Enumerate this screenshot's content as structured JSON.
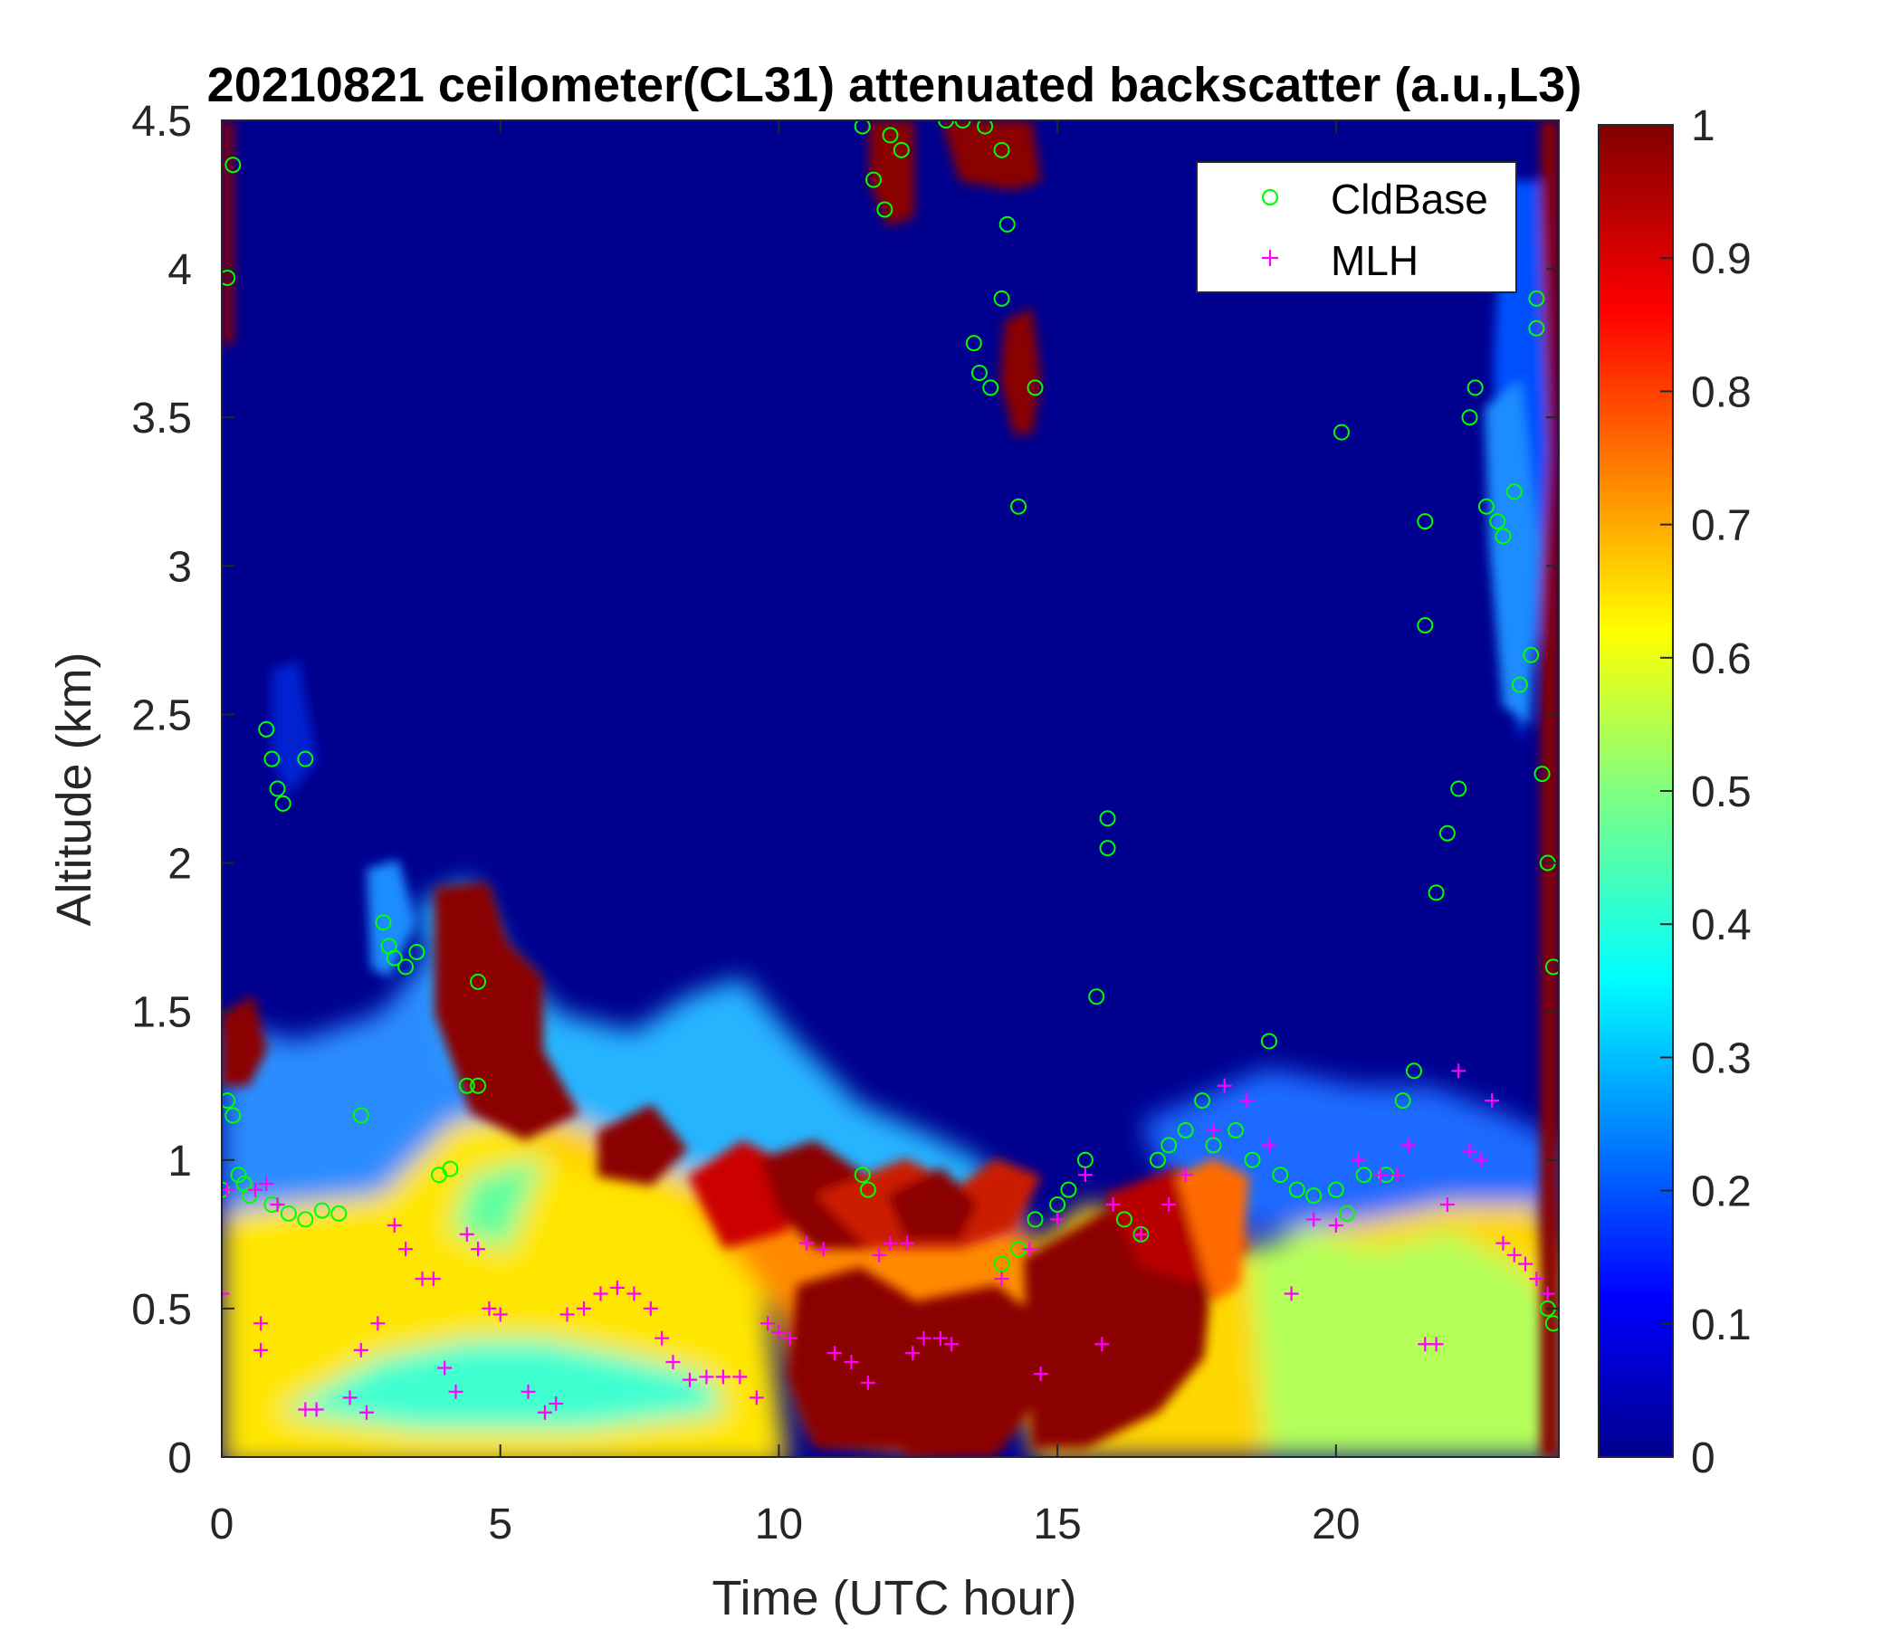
{
  "chart_data": {
    "type": "heatmap",
    "title": "20210821 ceilometer(CL31) attenuated backscatter (a.u.,L3)",
    "xlabel": "Time (UTC hour)",
    "ylabel": "Altitude (km)",
    "xlim": [
      0,
      24
    ],
    "ylim": [
      0,
      4.5
    ],
    "xticks": [
      "0",
      "5",
      "10",
      "15",
      "20"
    ],
    "xtick_values": [
      0,
      5,
      10,
      15,
      20
    ],
    "yticks": [
      "0",
      "0.5",
      "1",
      "1.5",
      "2",
      "2.5",
      "3",
      "3.5",
      "4",
      "4.5"
    ],
    "ytick_values": [
      0,
      0.5,
      1,
      1.5,
      2,
      2.5,
      3,
      3.5,
      4,
      4.5
    ],
    "colorbar": {
      "colormap": "jet",
      "range": [
        0,
        1
      ],
      "ticks": [
        "0",
        "0.1",
        "0.2",
        "0.3",
        "0.4",
        "0.5",
        "0.6",
        "0.7",
        "0.8",
        "0.9",
        "1"
      ],
      "tick_values": [
        0,
        0.1,
        0.2,
        0.3,
        0.4,
        0.5,
        0.6,
        0.7,
        0.8,
        0.9,
        1
      ]
    },
    "legend": {
      "placement": "top-right",
      "entries": [
        {
          "label": "CldBase",
          "marker": "circle",
          "color": "#00ff00"
        },
        {
          "label": "MLH",
          "marker": "plus",
          "color": "#ff00ff"
        }
      ]
    },
    "series": [
      {
        "name": "CldBase",
        "points": [
          [
            0.0,
            0.9
          ],
          [
            0.1,
            1.2
          ],
          [
            0.2,
            1.15
          ],
          [
            0.3,
            0.95
          ],
          [
            0.4,
            0.92
          ],
          [
            0.5,
            0.88
          ],
          [
            0.2,
            4.35
          ],
          [
            0.1,
            3.97
          ],
          [
            0.8,
            2.45
          ],
          [
            0.9,
            2.35
          ],
          [
            1.0,
            2.25
          ],
          [
            1.1,
            2.2
          ],
          [
            1.5,
            2.35
          ],
          [
            0.9,
            0.85
          ],
          [
            1.2,
            0.82
          ],
          [
            1.5,
            0.8
          ],
          [
            1.8,
            0.83
          ],
          [
            2.1,
            0.82
          ],
          [
            2.5,
            1.15
          ],
          [
            2.9,
            1.8
          ],
          [
            3.0,
            1.72
          ],
          [
            3.1,
            1.68
          ],
          [
            3.3,
            1.65
          ],
          [
            3.5,
            1.7
          ],
          [
            3.9,
            0.95
          ],
          [
            4.1,
            0.97
          ],
          [
            4.4,
            1.25
          ],
          [
            4.6,
            1.6
          ],
          [
            4.6,
            1.25
          ],
          [
            11.5,
            4.48
          ],
          [
            11.7,
            4.3
          ],
          [
            11.9,
            4.2
          ],
          [
            12.0,
            4.45
          ],
          [
            12.2,
            4.4
          ],
          [
            11.6,
            0.9
          ],
          [
            11.5,
            0.95
          ],
          [
            13.0,
            4.5
          ],
          [
            13.3,
            4.5
          ],
          [
            13.7,
            4.48
          ],
          [
            14.0,
            4.4
          ],
          [
            13.5,
            3.75
          ],
          [
            13.6,
            3.65
          ],
          [
            13.8,
            3.6
          ],
          [
            14.0,
            3.9
          ],
          [
            14.1,
            4.15
          ],
          [
            14.3,
            3.2
          ],
          [
            14.6,
            3.6
          ],
          [
            14.0,
            0.65
          ],
          [
            14.3,
            0.7
          ],
          [
            14.6,
            0.8
          ],
          [
            15.0,
            0.85
          ],
          [
            15.2,
            0.9
          ],
          [
            15.5,
            1.0
          ],
          [
            15.7,
            1.55
          ],
          [
            15.9,
            2.15
          ],
          [
            15.9,
            2.05
          ],
          [
            16.2,
            0.8
          ],
          [
            16.5,
            0.75
          ],
          [
            16.8,
            1.0
          ],
          [
            17.0,
            1.05
          ],
          [
            17.3,
            1.1
          ],
          [
            17.6,
            1.2
          ],
          [
            17.8,
            1.05
          ],
          [
            18.2,
            1.1
          ],
          [
            18.5,
            1.0
          ],
          [
            18.8,
            1.4
          ],
          [
            19.0,
            0.95
          ],
          [
            19.3,
            0.9
          ],
          [
            19.6,
            0.88
          ],
          [
            20.0,
            0.9
          ],
          [
            20.2,
            0.82
          ],
          [
            20.5,
            0.95
          ],
          [
            20.1,
            3.45
          ],
          [
            20.9,
            0.95
          ],
          [
            21.2,
            1.2
          ],
          [
            21.4,
            1.3
          ],
          [
            21.6,
            2.8
          ],
          [
            21.6,
            3.15
          ],
          [
            21.8,
            1.9
          ],
          [
            22.0,
            2.1
          ],
          [
            22.2,
            2.25
          ],
          [
            22.4,
            3.5
          ],
          [
            22.5,
            3.6
          ],
          [
            22.7,
            3.2
          ],
          [
            22.9,
            3.15
          ],
          [
            23.0,
            3.1
          ],
          [
            23.2,
            3.25
          ],
          [
            23.3,
            2.6
          ],
          [
            23.5,
            2.7
          ],
          [
            23.6,
            3.8
          ],
          [
            23.7,
            2.3
          ],
          [
            23.8,
            2.0
          ],
          [
            23.9,
            1.65
          ],
          [
            23.8,
            0.5
          ],
          [
            23.9,
            0.45
          ],
          [
            23.6,
            3.9
          ]
        ]
      },
      {
        "name": "MLH",
        "points": [
          [
            0.0,
            0.55
          ],
          [
            0.1,
            0.9
          ],
          [
            0.6,
            0.9
          ],
          [
            0.8,
            0.92
          ],
          [
            1.0,
            0.85
          ],
          [
            0.7,
            0.45
          ],
          [
            0.7,
            0.36
          ],
          [
            1.5,
            0.16
          ],
          [
            1.7,
            0.16
          ],
          [
            2.3,
            0.2
          ],
          [
            2.6,
            0.15
          ],
          [
            2.5,
            0.36
          ],
          [
            2.8,
            0.45
          ],
          [
            3.1,
            0.78
          ],
          [
            3.3,
            0.7
          ],
          [
            3.6,
            0.6
          ],
          [
            3.8,
            0.6
          ],
          [
            4.0,
            0.3
          ],
          [
            4.2,
            0.22
          ],
          [
            4.4,
            0.75
          ],
          [
            4.6,
            0.7
          ],
          [
            4.8,
            0.5
          ],
          [
            5.0,
            0.48
          ],
          [
            5.5,
            0.22
          ],
          [
            5.8,
            0.15
          ],
          [
            6.0,
            0.18
          ],
          [
            6.2,
            0.48
          ],
          [
            6.5,
            0.5
          ],
          [
            6.8,
            0.55
          ],
          [
            7.1,
            0.57
          ],
          [
            7.4,
            0.55
          ],
          [
            7.7,
            0.5
          ],
          [
            7.9,
            0.4
          ],
          [
            8.1,
            0.32
          ],
          [
            8.4,
            0.26
          ],
          [
            8.7,
            0.27
          ],
          [
            9.0,
            0.27
          ],
          [
            9.3,
            0.27
          ],
          [
            9.6,
            0.2
          ],
          [
            9.8,
            0.45
          ],
          [
            10.0,
            0.42
          ],
          [
            10.2,
            0.4
          ],
          [
            10.5,
            0.72
          ],
          [
            10.8,
            0.7
          ],
          [
            11.0,
            0.35
          ],
          [
            11.3,
            0.32
          ],
          [
            11.6,
            0.25
          ],
          [
            11.8,
            0.68
          ],
          [
            12.0,
            0.72
          ],
          [
            12.3,
            0.72
          ],
          [
            12.4,
            0.35
          ],
          [
            12.6,
            0.4
          ],
          [
            12.9,
            0.4
          ],
          [
            13.1,
            0.38
          ],
          [
            14.0,
            0.6
          ],
          [
            14.5,
            0.7
          ],
          [
            15.0,
            0.8
          ],
          [
            15.5,
            0.95
          ],
          [
            15.8,
            0.38
          ],
          [
            14.7,
            0.28
          ],
          [
            16.0,
            0.85
          ],
          [
            16.5,
            0.75
          ],
          [
            17.0,
            0.85
          ],
          [
            17.3,
            0.95
          ],
          [
            17.8,
            1.1
          ],
          [
            18.0,
            1.25
          ],
          [
            18.4,
            1.2
          ],
          [
            18.8,
            1.05
          ],
          [
            19.2,
            0.55
          ],
          [
            19.6,
            0.8
          ],
          [
            20.0,
            0.78
          ],
          [
            20.4,
            1.0
          ],
          [
            20.8,
            0.95
          ],
          [
            21.1,
            0.95
          ],
          [
            21.3,
            1.05
          ],
          [
            21.6,
            0.38
          ],
          [
            21.8,
            0.38
          ],
          [
            22.0,
            0.85
          ],
          [
            22.2,
            1.3
          ],
          [
            22.4,
            1.03
          ],
          [
            22.6,
            1.0
          ],
          [
            22.8,
            1.2
          ],
          [
            23.0,
            0.72
          ],
          [
            23.2,
            0.68
          ],
          [
            23.4,
            0.65
          ],
          [
            23.6,
            0.6
          ],
          [
            23.8,
            0.55
          ]
        ]
      }
    ]
  }
}
